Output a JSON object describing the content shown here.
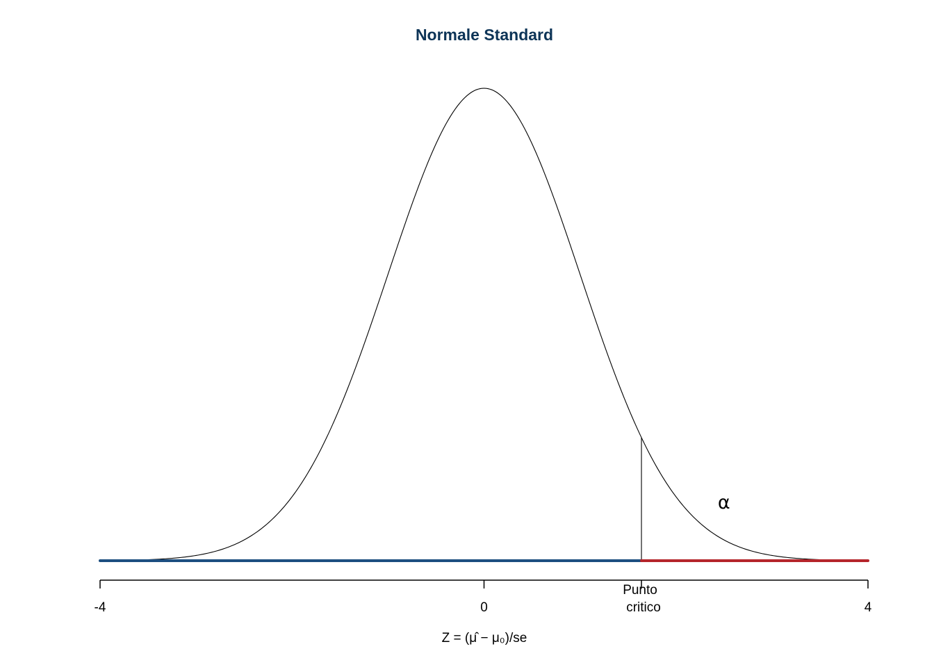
{
  "chart_data": {
    "type": "line",
    "title": "Normale Standard",
    "xlabel": "Z = (μ̂ − μ₀)/se",
    "ylabel": "",
    "xlim": [
      -4,
      4
    ],
    "ylim": [
      0,
      0.4
    ],
    "grid": false,
    "x_ticks": [
      {
        "value": -4,
        "label": "-4"
      },
      {
        "value": 0,
        "label": "0"
      },
      {
        "value": 4,
        "label": "4"
      }
    ],
    "critical_point": {
      "value": 1.64,
      "label_line1": "Punto",
      "label_line2": "critico"
    },
    "tail_annotation": {
      "text": "α",
      "x": 2.5,
      "y": 0.05
    },
    "curve": {
      "function": "standard normal density",
      "mean": 0,
      "sd": 1,
      "x_from": -4,
      "x_to": 4
    },
    "regions": [
      {
        "name": "acceptance",
        "from": -4,
        "to": 1.64,
        "color": "#1c4e80"
      },
      {
        "name": "rejection",
        "from": 1.64,
        "to": 4,
        "color": "#b5252b"
      }
    ]
  },
  "colors": {
    "title": "#0d3457",
    "curve": "#000000",
    "acceptance": "#1c4e80",
    "rejection": "#b5252b"
  }
}
